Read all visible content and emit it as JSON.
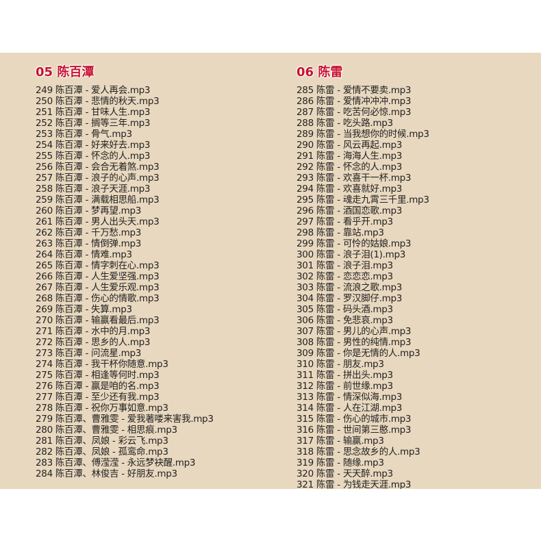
{
  "sections": [
    {
      "title": "05 陈百潭",
      "items": [
        "249 陈百潭 - 爱人再会.mp3",
        "250 陈百潭 - 悲情的秋天.mp3",
        "251 陈百潭 - 甘味人生.mp3",
        "252 陈百潭 - 搁等三年.mp3",
        "253 陈百潭 - 骨气.mp3",
        "254 陈百潭 - 好来好去.mp3",
        "255 陈百潭 - 怀念的人.mp3",
        "256 陈百潭 - 会合无着煞.mp3",
        "257 陈百潭 - 浪子的心声.mp3",
        "258 陈百潭 - 浪子天涯.mp3",
        "259 陈百潭 - 满载相思船.mp3",
        "260 陈百潭 - 梦再望.mp3",
        "261 陈百潭 - 男人出头天.mp3",
        "262 陈百潭 - 千万愁.mp3",
        "263 陈百潭 - 情倒弹.mp3",
        "264 陈百潭 - 情难.mp3",
        "265 陈百潭 - 情字刺在心.mp3",
        "266 陈百潭 - 人生爱坚强.mp3",
        "267 陈百潭 - 人生爱乐观.mp3",
        "268 陈百潭 - 伤心的情歌.mp3",
        "269 陈百潭 - 失算.mp3",
        "270 陈百潭 - 输赢看最后.mp3",
        "271 陈百潭 - 水中的月.mp3",
        "272 陈百潭 - 思乡的人.mp3",
        "273 陈百潭 - 问流星.mp3",
        "274 陈百潭 - 我干杯你随意.mp3",
        "275 陈百潭 - 相逢等何时.mp3",
        "276 陈百潭 - 赢是咱的名.mp3",
        "277 陈百潭 - 至少还有我.mp3",
        "278 陈百潭 - 祝你万事如意.mp3",
        "279 陈百潭、曹雅雯 - 爱我著喽来害我.mp3",
        "280 陈百潭、曹雅雯 - 相思痕.mp3",
        "281 陈百潭、凤娘 - 彩云飞.mp3",
        "282 陈百潭、凤娘 - 孤鸾命.mp3",
        "283 陈百潭、傅滢滢 - 永远梦袂醒.mp3",
        "284 陈百潭、林俊吉 - 好朋友.mp3"
      ]
    },
    {
      "title": "06 陈雷",
      "items": [
        "285 陈雷 - 爱情不要卖.mp3",
        "286 陈雷 - 爱情冲冲冲.mp3",
        "287 陈雷 - 吃苦何必惊.mp3",
        "288 陈雷 - 吃头路.mp3",
        "289 陈雷 - 当我想你的时候.mp3",
        "290 陈雷 - 风云再起.mp3",
        "291 陈雷 - 海海人生.mp3",
        "292 陈雷 - 怀念的人.mp3",
        "293 陈雷 - 欢喜干一杯.mp3",
        "294 陈雷 - 欢喜就好.mp3",
        "295 陈雷 - 魂走九霄三千里.mp3",
        "296 陈雷 - 酒国恋歌.mp3",
        "297 陈雷 - 看乎开.mp3",
        "298 陈雷 - 靠站.mp3",
        "299 陈雷 - 可怜的姑娘.mp3",
        "300 陈雷 - 浪子泪(1).mp3",
        "301 陈雷 - 浪子泪.mp3",
        "302 陈雷 - 恋恋恋.mp3",
        "303 陈雷 - 流浪之歌.mp3",
        "304 陈雷 - 罗汉脚仔.mp3",
        "305 陈雷 - 码头酒.mp3",
        "306 陈雷 - 免悲哀.mp3",
        "307 陈雷 - 男儿的心声.mp3",
        "308 陈雷 - 男性的纯情.mp3",
        "309 陈雷 - 你是无情的人.mp3",
        "310 陈雷 - 朋友.mp3",
        "311 陈雷 - 拼出头.mp3",
        "312 陈雷 - 前世缘.mp3",
        "313 陈雷 - 情深似海.mp3",
        "314 陈雷 - 人在江湖.mp3",
        "315 陈雷 - 伤心的城市.mp3",
        "316 陈雷 - 世间第三憨.mp3",
        "317 陈雷 - 输赢.mp3",
        "318 陈雷 - 思念故乡的人.mp3",
        "319 陈雷 - 随缘.mp3",
        "320 陈雷 - 天天醉.mp3",
        "321 陈雷 - 为钱走天涯.mp3"
      ]
    }
  ],
  "colors": {
    "background": "#e8d8bf",
    "title": "#c8102e",
    "text": "#222222"
  }
}
